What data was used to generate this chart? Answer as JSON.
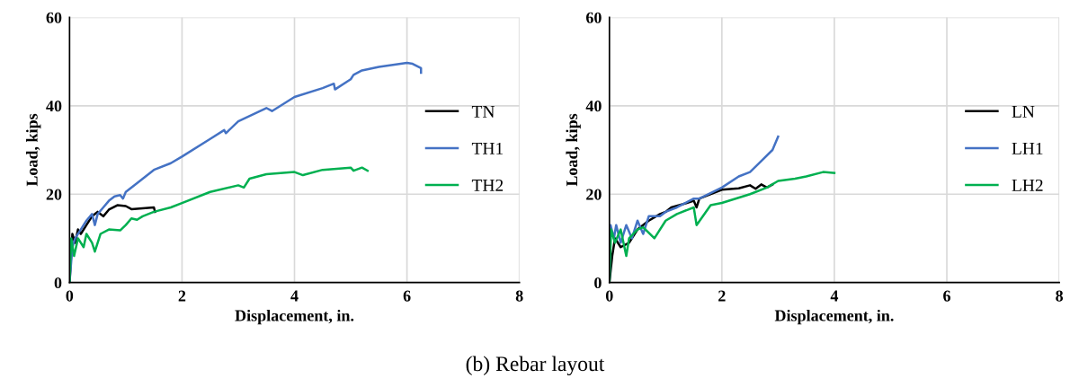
{
  "chart_data": [
    {
      "type": "line",
      "xlabel": "Displacement, in.",
      "ylabel": "Load, kips",
      "xlim": [
        0,
        8
      ],
      "ylim": [
        0,
        60
      ],
      "xticks": [
        0,
        2,
        4,
        6,
        8
      ],
      "yticks": [
        0,
        20,
        40,
        60
      ],
      "grid": true,
      "legend": "right",
      "annotations": [
        "(b) Rebar layout"
      ],
      "series": [
        {
          "name": "TN",
          "color": "#000000",
          "x": [
            0,
            0.05,
            0.1,
            0.15,
            0.2,
            0.3,
            0.4,
            0.5,
            0.6,
            0.7,
            0.85,
            1.0,
            1.1,
            1.3,
            1.5,
            1.52
          ],
          "values": [
            0,
            11,
            9,
            12,
            11,
            13,
            15,
            16,
            15,
            16.5,
            17.5,
            17.3,
            16.6,
            16.8,
            17,
            16
          ]
        },
        {
          "name": "TH1",
          "color": "#4472c4",
          "x": [
            0,
            0.05,
            0.1,
            0.2,
            0.3,
            0.4,
            0.45,
            0.5,
            0.6,
            0.7,
            0.8,
            0.9,
            0.95,
            1.0,
            1.2,
            1.5,
            1.8,
            2,
            2.5,
            2.75,
            2.78,
            3,
            3.5,
            3.6,
            4,
            4.5,
            4.7,
            4.72,
            5,
            5.05,
            5.2,
            5.5,
            6,
            6.1,
            6.25,
            6.25
          ],
          "values": [
            0,
            8,
            10,
            12,
            14,
            15.5,
            13,
            15.5,
            17,
            18.5,
            19.5,
            19.8,
            19,
            20.5,
            22.5,
            25.5,
            27,
            28.5,
            32.5,
            34.5,
            33.8,
            36.5,
            39.5,
            38.8,
            42,
            44,
            45,
            43.7,
            46,
            47,
            48,
            48.8,
            49.7,
            49.5,
            48.5,
            47.5
          ]
        },
        {
          "name": "TH2",
          "color": "#00b050",
          "x": [
            0,
            0.03,
            0.08,
            0.15,
            0.25,
            0.3,
            0.4,
            0.45,
            0.55,
            0.7,
            0.9,
            1.0,
            1.1,
            1.2,
            1.3,
            1.5,
            1.8,
            2,
            2.5,
            3,
            3.1,
            3.2,
            3.5,
            4,
            4.15,
            4.5,
            5,
            5.05,
            5.2,
            5.3
          ],
          "values": [
            0,
            10,
            6,
            10,
            8,
            11,
            9,
            7,
            11,
            12,
            11.8,
            13,
            14.5,
            14.2,
            15,
            16,
            17,
            18,
            20.5,
            22,
            21.5,
            23.5,
            24.5,
            25,
            24.3,
            25.5,
            26,
            25.3,
            26,
            25.3
          ]
        }
      ]
    },
    {
      "type": "line",
      "xlabel": "Displacement, in.",
      "ylabel": "Load, kips",
      "xlim": [
        0,
        8
      ],
      "ylim": [
        0,
        60
      ],
      "xticks": [
        0,
        2,
        4,
        6,
        8
      ],
      "yticks": [
        0,
        20,
        40,
        60
      ],
      "grid": true,
      "legend": "right",
      "series": [
        {
          "name": "LN",
          "color": "#000000",
          "x": [
            0,
            0.05,
            0.1,
            0.2,
            0.35,
            0.5,
            0.7,
            0.9,
            1.0,
            1.1,
            1.3,
            1.5,
            1.55,
            1.6,
            2,
            2.3,
            2.5,
            2.6,
            2.7,
            2.8,
            2.9
          ],
          "values": [
            0,
            6,
            10,
            8,
            9,
            12,
            14,
            15.5,
            16,
            17,
            17.7,
            18.5,
            17,
            19,
            21,
            21.3,
            22,
            21.2,
            22.2,
            21.5,
            22.2
          ]
        },
        {
          "name": "LH1",
          "color": "#4472c4",
          "x": [
            0,
            0.02,
            0.08,
            0.12,
            0.2,
            0.3,
            0.4,
            0.5,
            0.6,
            0.7,
            0.9,
            1.0,
            1.2,
            1.5,
            1.6,
            2,
            2.3,
            2.5,
            2.7,
            2.9,
            3.0
          ],
          "values": [
            0,
            13,
            10,
            13,
            9,
            13,
            10,
            14,
            11,
            15,
            15,
            16,
            17,
            19,
            19,
            21.5,
            24,
            25,
            27.5,
            30,
            33
          ]
        },
        {
          "name": "LH2",
          "color": "#00b050",
          "x": [
            0,
            0.03,
            0.1,
            0.2,
            0.3,
            0.35,
            0.5,
            0.6,
            0.8,
            1.0,
            1.2,
            1.5,
            1.55,
            1.8,
            2,
            2.5,
            2.8,
            3,
            3.3,
            3.5,
            3.8,
            4.0
          ],
          "values": [
            0,
            12,
            9,
            12,
            6,
            10,
            12,
            12.5,
            10,
            14,
            15.5,
            17,
            13,
            17.5,
            18,
            20,
            21.5,
            23,
            23.5,
            24,
            25,
            24.8
          ]
        }
      ]
    }
  ]
}
